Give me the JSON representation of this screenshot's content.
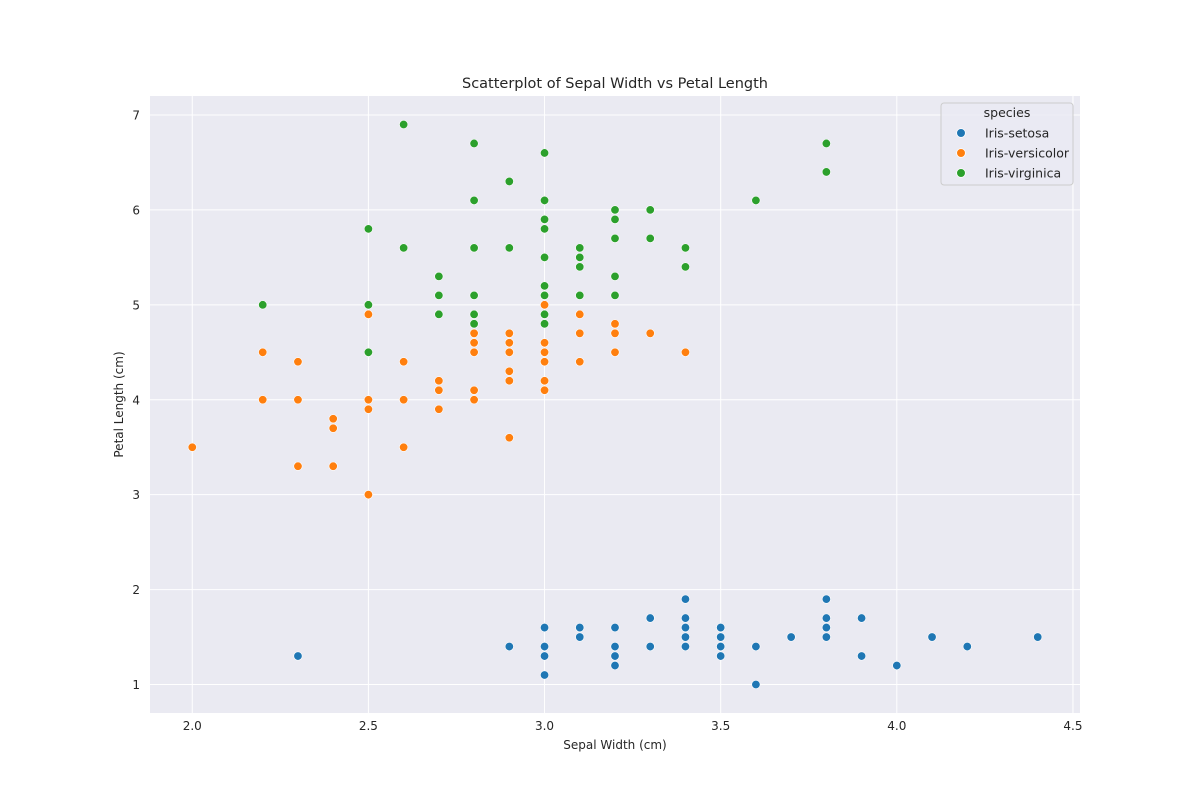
{
  "chart_data": {
    "type": "scatter",
    "title": "Scatterplot of Sepal Width vs Petal Length",
    "xlabel": "Sepal Width (cm)",
    "ylabel": "Petal Length (cm)",
    "xlim": [
      1.88,
      4.52
    ],
    "ylim": [
      0.7,
      7.2
    ],
    "xticks": [
      2.0,
      2.5,
      3.0,
      3.5,
      4.0,
      4.5
    ],
    "xtick_labels": [
      "2.0",
      "2.5",
      "3.0",
      "3.5",
      "4.0",
      "4.5"
    ],
    "yticks": [
      1,
      2,
      3,
      4,
      5,
      6,
      7
    ],
    "ytick_labels": [
      "1",
      "2",
      "3",
      "4",
      "5",
      "6",
      "7"
    ],
    "grid": true,
    "legend": {
      "title": "species",
      "position": "top-right"
    },
    "colors": {
      "background": "#eaeaf2",
      "grid": "#ffffff"
    },
    "series": [
      {
        "name": "Iris-setosa",
        "color": "#1f77b4",
        "points": [
          [
            2.3,
            1.3
          ],
          [
            2.9,
            1.4
          ],
          [
            3.0,
            1.6
          ],
          [
            3.0,
            1.4
          ],
          [
            3.0,
            1.3
          ],
          [
            3.0,
            1.1
          ],
          [
            3.1,
            1.6
          ],
          [
            3.1,
            1.5
          ],
          [
            3.2,
            1.6
          ],
          [
            3.2,
            1.4
          ],
          [
            3.2,
            1.3
          ],
          [
            3.2,
            1.2
          ],
          [
            3.3,
            1.7
          ],
          [
            3.3,
            1.4
          ],
          [
            3.4,
            1.9
          ],
          [
            3.4,
            1.7
          ],
          [
            3.4,
            1.6
          ],
          [
            3.4,
            1.5
          ],
          [
            3.4,
            1.4
          ],
          [
            3.5,
            1.6
          ],
          [
            3.5,
            1.5
          ],
          [
            3.5,
            1.4
          ],
          [
            3.5,
            1.3
          ],
          [
            3.6,
            1.4
          ],
          [
            3.6,
            1.0
          ],
          [
            3.7,
            1.5
          ],
          [
            3.8,
            1.9
          ],
          [
            3.8,
            1.7
          ],
          [
            3.8,
            1.6
          ],
          [
            3.8,
            1.5
          ],
          [
            3.9,
            1.7
          ],
          [
            3.9,
            1.3
          ],
          [
            4.0,
            1.2
          ],
          [
            4.1,
            1.5
          ],
          [
            4.2,
            1.4
          ],
          [
            4.4,
            1.5
          ]
        ]
      },
      {
        "name": "Iris-versicolor",
        "color": "#ff7f0e",
        "points": [
          [
            2.0,
            3.5
          ],
          [
            2.2,
            4.5
          ],
          [
            2.2,
            4.0
          ],
          [
            2.3,
            4.4
          ],
          [
            2.3,
            4.0
          ],
          [
            2.3,
            3.3
          ],
          [
            2.4,
            3.8
          ],
          [
            2.4,
            3.7
          ],
          [
            2.4,
            3.3
          ],
          [
            2.5,
            4.9
          ],
          [
            2.5,
            4.0
          ],
          [
            2.5,
            3.9
          ],
          [
            2.5,
            3.0
          ],
          [
            2.6,
            4.4
          ],
          [
            2.6,
            4.0
          ],
          [
            2.6,
            3.5
          ],
          [
            2.7,
            4.2
          ],
          [
            2.7,
            4.1
          ],
          [
            2.7,
            3.9
          ],
          [
            2.8,
            4.7
          ],
          [
            2.8,
            4.6
          ],
          [
            2.8,
            4.5
          ],
          [
            2.8,
            4.1
          ],
          [
            2.8,
            4.0
          ],
          [
            2.9,
            4.7
          ],
          [
            2.9,
            4.6
          ],
          [
            2.9,
            4.5
          ],
          [
            2.9,
            4.3
          ],
          [
            2.9,
            4.2
          ],
          [
            2.9,
            3.6
          ],
          [
            3.0,
            5.0
          ],
          [
            3.0,
            4.6
          ],
          [
            3.0,
            4.5
          ],
          [
            3.0,
            4.4
          ],
          [
            3.0,
            4.2
          ],
          [
            3.0,
            4.1
          ],
          [
            3.1,
            4.9
          ],
          [
            3.1,
            4.7
          ],
          [
            3.1,
            4.4
          ],
          [
            3.2,
            4.8
          ],
          [
            3.2,
            4.7
          ],
          [
            3.2,
            4.5
          ],
          [
            3.3,
            4.7
          ],
          [
            3.4,
            4.5
          ]
        ]
      },
      {
        "name": "Iris-virginica",
        "color": "#2ca02c",
        "points": [
          [
            2.2,
            5.0
          ],
          [
            2.5,
            5.8
          ],
          [
            2.5,
            5.0
          ],
          [
            2.5,
            4.5
          ],
          [
            2.6,
            6.9
          ],
          [
            2.6,
            5.6
          ],
          [
            2.7,
            5.3
          ],
          [
            2.7,
            5.1
          ],
          [
            2.7,
            4.9
          ],
          [
            2.8,
            6.7
          ],
          [
            2.8,
            6.1
          ],
          [
            2.8,
            5.6
          ],
          [
            2.8,
            5.1
          ],
          [
            2.8,
            4.9
          ],
          [
            2.8,
            4.8
          ],
          [
            2.9,
            6.3
          ],
          [
            2.9,
            5.6
          ],
          [
            3.0,
            6.6
          ],
          [
            3.0,
            6.1
          ],
          [
            3.0,
            5.9
          ],
          [
            3.0,
            5.8
          ],
          [
            3.0,
            5.5
          ],
          [
            3.0,
            5.2
          ],
          [
            3.0,
            5.1
          ],
          [
            3.0,
            4.9
          ],
          [
            3.0,
            4.8
          ],
          [
            3.1,
            5.6
          ],
          [
            3.1,
            5.5
          ],
          [
            3.1,
            5.4
          ],
          [
            3.1,
            5.1
          ],
          [
            3.2,
            6.0
          ],
          [
            3.2,
            5.9
          ],
          [
            3.2,
            5.7
          ],
          [
            3.2,
            5.3
          ],
          [
            3.2,
            5.1
          ],
          [
            3.3,
            6.0
          ],
          [
            3.3,
            5.7
          ],
          [
            3.4,
            5.6
          ],
          [
            3.4,
            5.4
          ],
          [
            3.6,
            6.1
          ],
          [
            3.8,
            6.7
          ],
          [
            3.8,
            6.4
          ]
        ]
      }
    ]
  }
}
